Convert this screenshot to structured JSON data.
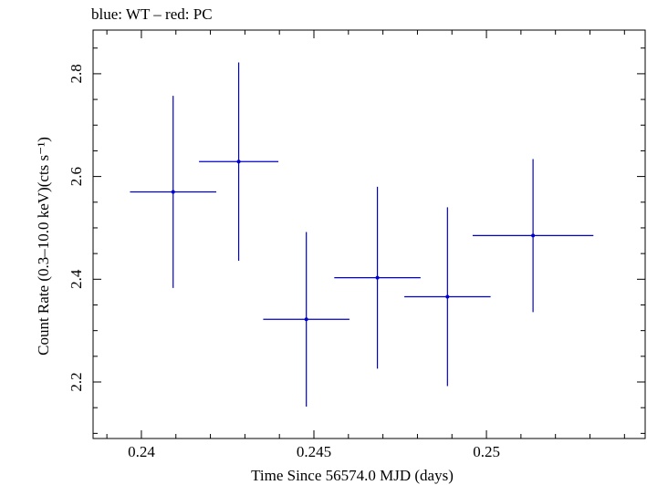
{
  "chart_data": {
    "type": "scatter",
    "title": "blue: WT – red: PC",
    "xlabel": "Time Since 56574.0 MJD (days)",
    "ylabel": "Count Rate (0.3–10.0 keV)(cts s⁻¹)",
    "xlim": [
      0.2386,
      0.2546
    ],
    "ylim": [
      2.09,
      2.885
    ],
    "xticks": [
      0.24,
      0.245,
      0.25
    ],
    "xtick_labels": [
      "0.24",
      "0.245",
      "0.25"
    ],
    "yticks": [
      2.2,
      2.4,
      2.6,
      2.8
    ],
    "ytick_labels": [
      "2.2",
      "2.4",
      "2.6",
      "2.8"
    ],
    "grid": false,
    "series": [
      {
        "name": "WT",
        "color": "#0000cc",
        "points": [
          {
            "x": 0.24092,
            "xerr": 0.00125,
            "y": 2.57,
            "yerr": 0.187
          },
          {
            "x": 0.24282,
            "xerr": 0.00115,
            "y": 2.629,
            "yerr": 0.193
          },
          {
            "x": 0.24478,
            "xerr": 0.00125,
            "y": 2.322,
            "yerr": 0.17
          },
          {
            "x": 0.24684,
            "xerr": 0.00125,
            "y": 2.403,
            "yerr": 0.177
          },
          {
            "x": 0.24887,
            "xerr": 0.00125,
            "y": 2.366,
            "yerr": 0.174
          },
          {
            "x": 0.25135,
            "xerr": 0.00175,
            "y": 2.485,
            "yerr": 0.149
          }
        ]
      }
    ]
  }
}
